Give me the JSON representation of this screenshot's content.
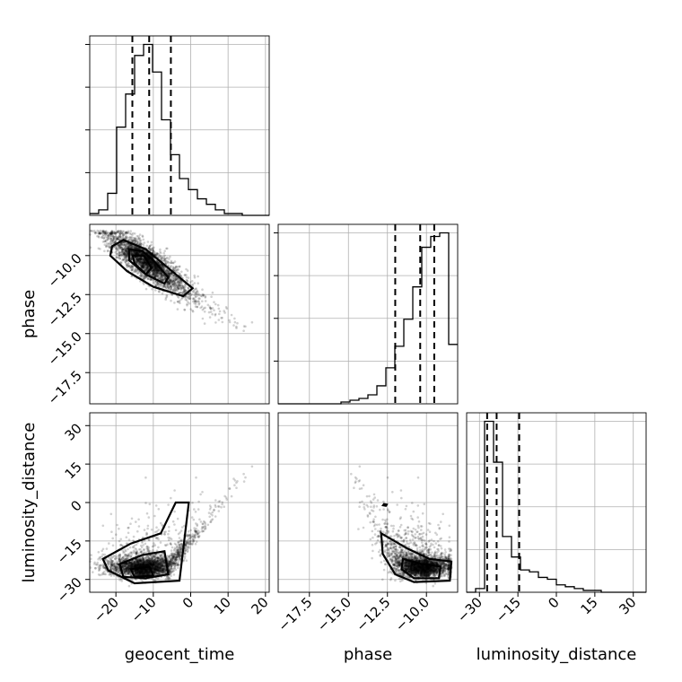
{
  "chart_data": {
    "type": "corner",
    "parameters": [
      "geocent_time",
      "phase",
      "luminosity_distance"
    ],
    "ranges": {
      "geocent_time": [
        -27,
        21
      ],
      "phase": [
        -19.5,
        -8.0
      ],
      "luminosity_distance": [
        -35,
        35
      ]
    },
    "ticks": {
      "geocent_time": [
        "−20",
        "−10",
        "0",
        "10",
        "20"
      ],
      "phase": [
        "−17.5",
        "−15.0",
        "−12.5",
        "−10.0"
      ],
      "luminosity_distance": [
        "−30",
        "−15",
        "0",
        "15",
        "30"
      ]
    },
    "tick_values": {
      "geocent_time": [
        -20,
        -10,
        0,
        10,
        20
      ],
      "phase": [
        -17.5,
        -15.0,
        -12.5,
        -10.0
      ],
      "luminosity_distance": [
        -30,
        -15,
        0,
        15,
        30
      ]
    },
    "quantiles": {
      "geocent_time": [
        -15.6,
        -11.1,
        -5.3
      ],
      "phase": [
        -12.0,
        -10.4,
        -9.5
      ],
      "luminosity_distance": [
        -27.0,
        -23.3,
        -14.5
      ]
    },
    "histograms": {
      "geocent_time": {
        "bin_edges": [
          -27,
          -24.6,
          -22.2,
          -19.8,
          -17.4,
          -15,
          -12.6,
          -10.2,
          -7.8,
          -5.4,
          -3,
          -0.6,
          1.8,
          4.2,
          6.6,
          9,
          11.4,
          13.8,
          16.2,
          18.6,
          21
        ],
        "counts": [
          1,
          3,
          12,
          48,
          66,
          87,
          93,
          78,
          52,
          33,
          20,
          14,
          9,
          6,
          3,
          1,
          1,
          0,
          0,
          0
        ]
      },
      "phase": {
        "bin_edges": [
          -19.5,
          -18.925,
          -18.35,
          -17.775,
          -17.2,
          -16.625,
          -16.05,
          -15.475,
          -14.9,
          -14.325,
          -13.75,
          -13.175,
          -12.6,
          -12.025,
          -11.45,
          -10.875,
          -10.3,
          -9.725,
          -9.15,
          -8.575,
          -8.0
        ],
        "counts": [
          0,
          0,
          0,
          0,
          0,
          0,
          0,
          1,
          2,
          3,
          5,
          10,
          20,
          32,
          47,
          65,
          87,
          93,
          95,
          33
        ]
      },
      "luminosity_distance": {
        "bin_edges": [
          -35,
          -31.5,
          -28,
          -24.5,
          -21,
          -17.5,
          -14,
          -10.5,
          -7,
          -3.5,
          0,
          3.5,
          7,
          10.5,
          14,
          17.5,
          21,
          24.5,
          28,
          31.5,
          35
        ],
        "counts": [
          0,
          2,
          92,
          70,
          30,
          19,
          12,
          11,
          8,
          7,
          4,
          3,
          2,
          1,
          1,
          0,
          0,
          0,
          0,
          0
        ]
      }
    },
    "contour_panels": [
      {
        "x": "geocent_time",
        "y": "phase"
      },
      {
        "x": "geocent_time",
        "y": "luminosity_distance"
      },
      {
        "x": "phase",
        "y": "luminosity_distance"
      }
    ],
    "grid": true,
    "xlabels": [
      "geocent_time",
      "phase",
      "luminosity_distance"
    ],
    "ylabels": [
      "phase",
      "luminosity_distance"
    ]
  }
}
